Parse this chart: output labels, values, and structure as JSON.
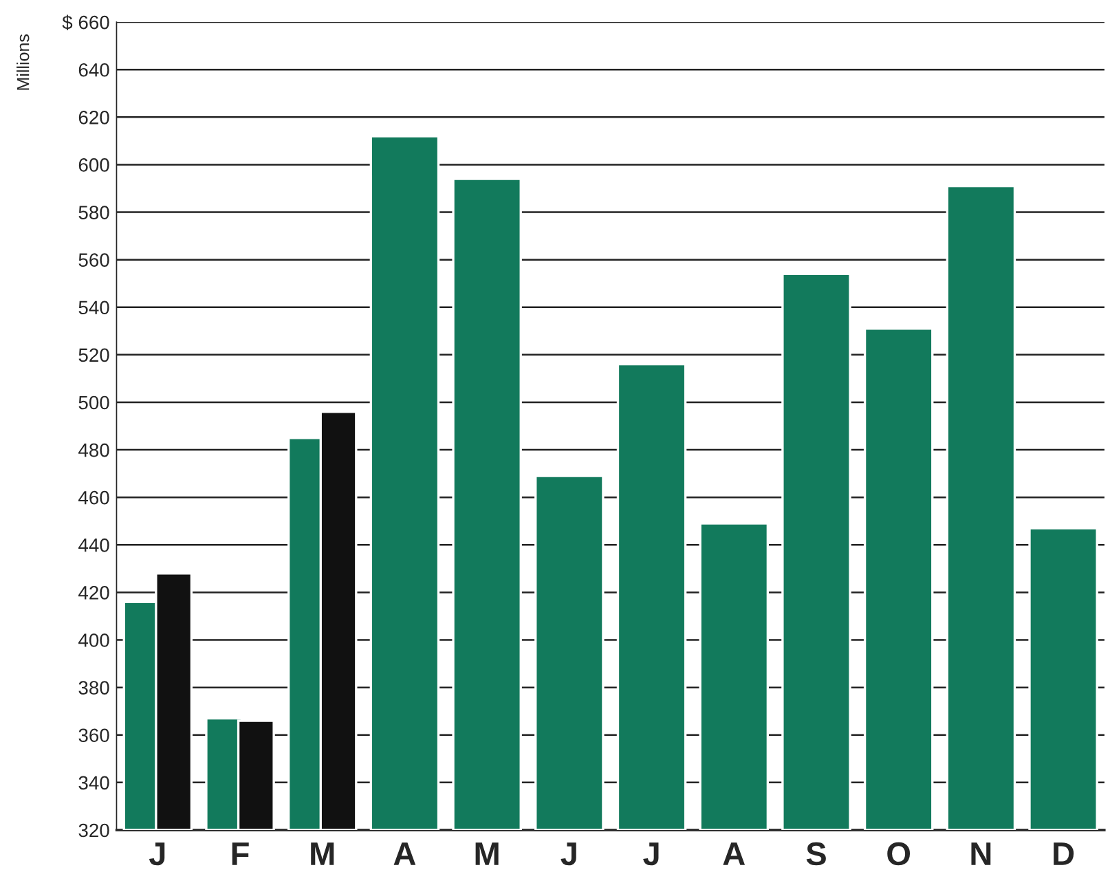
{
  "chart_data": {
    "type": "bar",
    "ylabel": "Millions",
    "categories": [
      "J",
      "F",
      "M",
      "A",
      "M",
      "J",
      "J",
      "A",
      "S",
      "O",
      "N",
      "D"
    ],
    "series": [
      {
        "color": "#127a5c",
        "values": [
          416,
          367,
          485,
          612,
          594,
          469,
          516,
          449,
          554,
          531,
          591,
          447
        ]
      },
      {
        "color": "#111111",
        "values": [
          428,
          366,
          496,
          null,
          null,
          null,
          null,
          null,
          null,
          null,
          null,
          null
        ]
      }
    ],
    "ylim": [
      320,
      660
    ],
    "yticks": [
      320,
      340,
      360,
      380,
      400,
      420,
      440,
      460,
      480,
      500,
      520,
      540,
      560,
      580,
      600,
      620,
      640,
      {
        "value": 660,
        "label": "$ 660"
      }
    ],
    "grid": "y",
    "legend": false
  }
}
